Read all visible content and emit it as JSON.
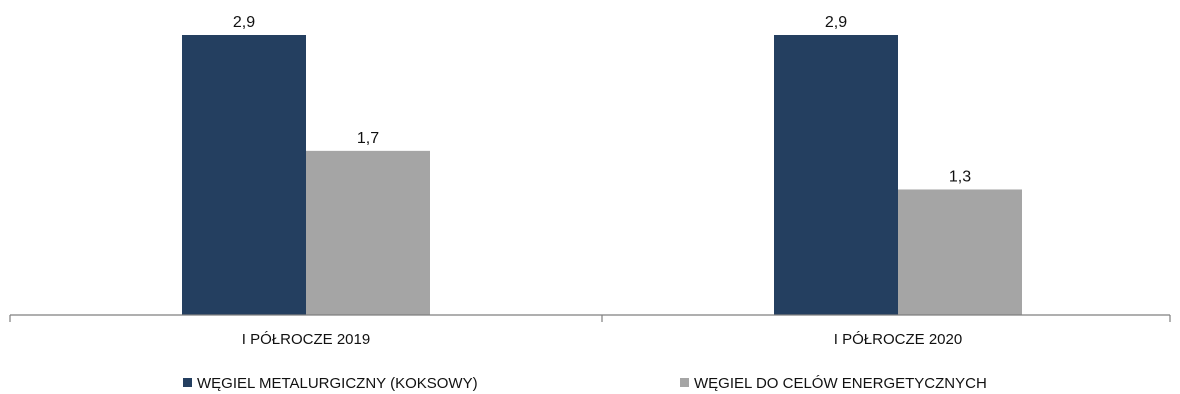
{
  "chart_data": {
    "type": "bar",
    "title": "",
    "xlabel": "",
    "ylabel": "",
    "ylim": [
      0,
      3.2
    ],
    "grid": false,
    "legend_position": "bottom",
    "categories": [
      "I PÓŁROCZE 2019",
      "I PÓŁROCZE 2020"
    ],
    "series": [
      {
        "name": "WĘGIEL METALURGICZNY (KOKSOWY)",
        "values": [
          2.9,
          2.9
        ],
        "labels": [
          "2,9",
          "2,9"
        ],
        "color": "#243f60"
      },
      {
        "name": "WĘGIEL DO CELÓW ENERGETYCZNYCH",
        "values": [
          1.7,
          1.3
        ],
        "labels": [
          "1,7",
          "1,3"
        ],
        "color": "#a5a5a5"
      }
    ]
  },
  "colors": {
    "axis": "#7f7f7f",
    "text": "#111111"
  }
}
